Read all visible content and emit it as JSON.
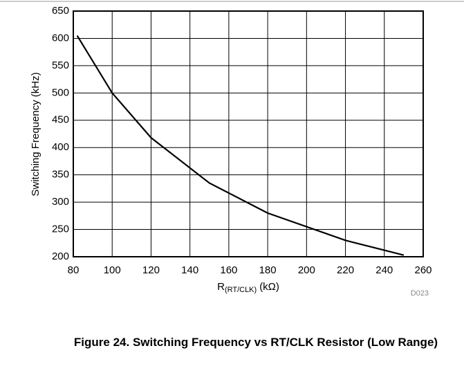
{
  "chart_data": {
    "type": "line",
    "x_label": "R",
    "x_label_sub": "(RT/CLK)",
    "x_label_unit": "(kΩ)",
    "y_label": "Switching Frequency (kHz)",
    "note": "D023",
    "caption": "Figure 24. Switching Frequency vs RT/CLK Resistor (Low Range)",
    "x": [
      82,
      100,
      120,
      150,
      180,
      220,
      250
    ],
    "series": [
      {
        "color": "#000000",
        "values": [
          605,
          500,
          418,
          335,
          280,
          230,
          203
        ]
      }
    ],
    "xlim": [
      80,
      260
    ],
    "xticks": [
      80,
      100,
      120,
      140,
      160,
      180,
      200,
      220,
      240,
      260
    ],
    "ylim": [
      200,
      650
    ],
    "yticks": [
      200,
      250,
      300,
      350,
      400,
      450,
      500,
      550,
      600,
      650
    ],
    "grid": true
  }
}
